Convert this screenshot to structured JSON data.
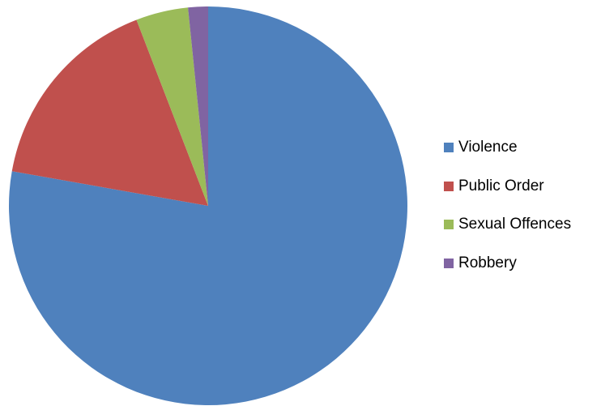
{
  "chart_data": {
    "type": "pie",
    "title": "",
    "start_angle_deg": 0,
    "direction": "clockwise",
    "legend_position": "right",
    "slices": [
      {
        "label": "Violence",
        "value": 77.0,
        "color": "#4F81BD"
      },
      {
        "label": "Public Order",
        "value": 16.2,
        "color": "#C0504D"
      },
      {
        "label": "Sexual Offences",
        "value": 4.2,
        "color": "#9BBB59"
      },
      {
        "label": "Robbery",
        "value": 1.6,
        "color": "#8064A2"
      }
    ]
  }
}
